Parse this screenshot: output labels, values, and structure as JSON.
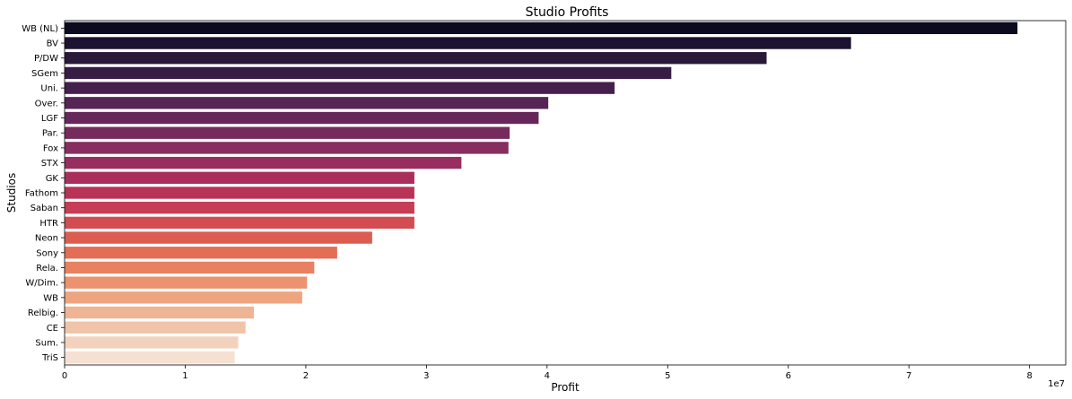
{
  "chart_data": {
    "type": "bar",
    "orientation": "horizontal",
    "title": "Studio Profits",
    "xlabel": "Profit",
    "ylabel": "Studios",
    "x_scale_label": "1e7",
    "xlim": [
      0,
      8.3
    ],
    "xticks": [
      "0",
      "1",
      "2",
      "3",
      "4",
      "5",
      "6",
      "7",
      "8"
    ],
    "grid": false,
    "categories": [
      "WB (NL)",
      "BV",
      "P/DW",
      "SGem",
      "Uni.",
      "Over.",
      "LGF",
      "Par.",
      "Fox",
      "STX",
      "GK",
      "Fathom",
      "Saban",
      "HTR",
      "Neon",
      "Sony",
      "Rela.",
      "W/Dim.",
      "WB",
      "Relbig.",
      "CE",
      "Sum.",
      "TriS"
    ],
    "values": [
      79000000,
      65200000,
      58200000,
      50300000,
      45600000,
      40100000,
      39300000,
      36900000,
      36800000,
      32900000,
      29000000,
      29000000,
      29000000,
      29000000,
      25500000,
      22600000,
      20700000,
      20100000,
      19700000,
      15700000,
      15000000,
      14400000,
      14100000
    ],
    "colors": [
      "#0c0a1e",
      "#1d1230",
      "#2a1838",
      "#371d43",
      "#46204d",
      "#562455",
      "#66285a",
      "#762b5e",
      "#872d60",
      "#982e60",
      "#aa2e5c",
      "#b93357",
      "#c63d55",
      "#d24c52",
      "#dc5c50",
      "#e46d55",
      "#e98060",
      "#ec926e",
      "#eea47e",
      "#efb494",
      "#f0c4a8",
      "#f2d2bc",
      "#f5e0d2"
    ]
  }
}
